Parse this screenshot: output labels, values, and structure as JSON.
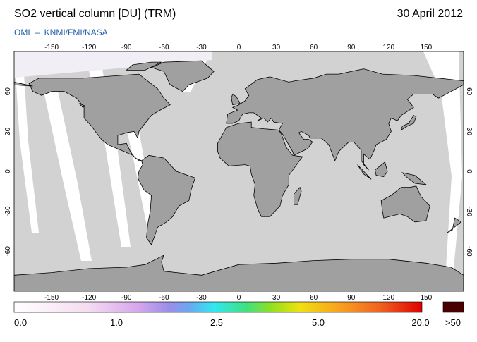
{
  "header": {
    "title": "SO2 vertical column [DU] (TRM)",
    "date": "30 April 2012",
    "subtitle": "OMI  –  KNMI/FMI/NASA"
  },
  "map": {
    "lon_ticks": [
      -150,
      -120,
      -90,
      -60,
      -30,
      0,
      30,
      60,
      90,
      120,
      150
    ],
    "lat_ticks": [
      60,
      30,
      0,
      -30,
      -60
    ]
  },
  "colorbar": {
    "labels": [
      "0.0",
      "1.0",
      "2.5",
      "5.0",
      "20.0",
      ">50"
    ]
  }
}
